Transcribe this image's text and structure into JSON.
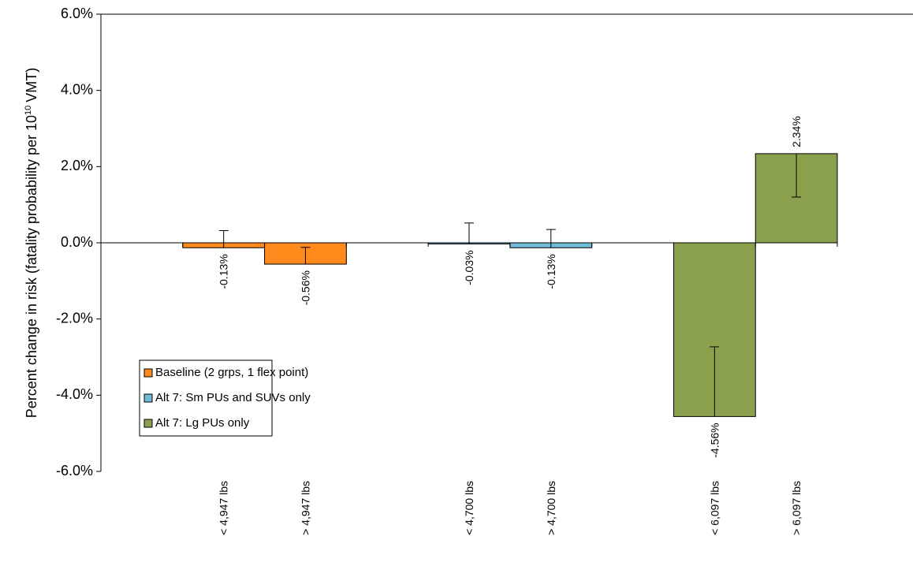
{
  "chart_data": {
    "type": "bar",
    "y_label": "Percent change in risk (fatality probability per 10",
    "y_label_sup": "10",
    "y_label_end": "VMT)",
    "categories": [
      null,
      "< 4,947 lbs",
      "> 4,947 lbs",
      null,
      "< 4,700 lbs",
      "> 4,700 lbs",
      null,
      "< 6,097 lbs",
      "> 6,097 lbs"
    ],
    "series": [
      {
        "name": "Baseline (2 grps, 1 flex point)",
        "color": "#ff8a1c",
        "values": [
          null,
          -0.13,
          -0.56,
          null,
          null,
          null,
          null,
          null,
          null
        ],
        "value_labels": [
          null,
          "-0.13%",
          "-0.56%",
          null,
          null,
          null,
          null,
          null,
          null
        ],
        "errors": [
          null,
          0.45,
          0.44,
          null,
          null,
          null,
          null,
          null,
          null
        ]
      },
      {
        "name": "Alt 7: Sm PUs and SUVs only",
        "color": "#6fbad6",
        "values": [
          null,
          null,
          null,
          null,
          -0.03,
          -0.13,
          null,
          null,
          null
        ],
        "value_labels": [
          null,
          null,
          null,
          null,
          "-0.03%",
          "-0.13%",
          null,
          null,
          null
        ],
        "errors": [
          null,
          null,
          null,
          null,
          0.55,
          0.48,
          null,
          null,
          null
        ]
      },
      {
        "name": "Alt 7: Lg PUs only",
        "color": "#8ba04d",
        "values": [
          null,
          null,
          null,
          null,
          null,
          null,
          null,
          -4.56,
          2.34
        ],
        "value_labels": [
          null,
          null,
          null,
          null,
          null,
          null,
          null,
          "-4.56%",
          "2.34%"
        ],
        "errors": [
          null,
          null,
          null,
          null,
          null,
          null,
          null,
          1.83,
          1.14
        ]
      }
    ],
    "ylim": [
      -6,
      6
    ],
    "yticks": [
      {
        "value": -6,
        "label": "-6.0%"
      },
      {
        "value": -4,
        "label": "-4.0%"
      },
      {
        "value": -2,
        "label": "-2.0%"
      },
      {
        "value": 0,
        "label": "0.0%"
      },
      {
        "value": 2,
        "label": "2.0%"
      },
      {
        "value": 4,
        "label": "4.0%"
      },
      {
        "value": 6,
        "label": "6.0%"
      }
    ],
    "legend": "lower-left"
  }
}
